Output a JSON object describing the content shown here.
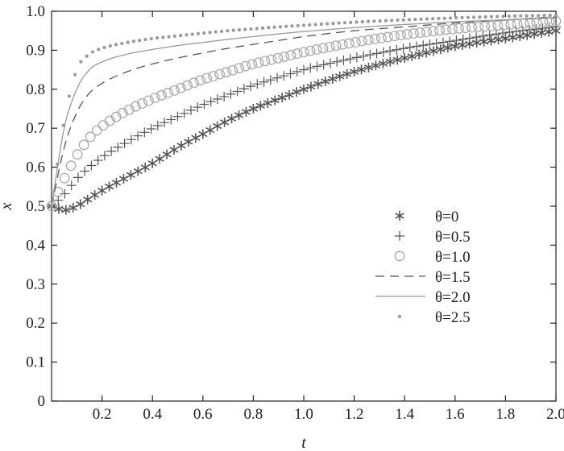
{
  "chart_data": {
    "type": "line",
    "xlabel": "t",
    "ylabel": "x",
    "xlim": [
      0,
      2.0
    ],
    "ylim": [
      0,
      1.0
    ],
    "xticks": [
      "0.2",
      "0.4",
      "0.6",
      "0.8",
      "1.0",
      "1.2",
      "1.4",
      "1.6",
      "1.8",
      "2.0"
    ],
    "yticks": [
      "0",
      "0.1",
      "0.2",
      "0.3",
      "0.4",
      "0.5",
      "0.6",
      "0.7",
      "0.8",
      "0.9",
      "1.0"
    ],
    "grid": false,
    "legend_position": "right-middle",
    "x": [
      0.0,
      0.05,
      0.1,
      0.15,
      0.2,
      0.3,
      0.4,
      0.5,
      0.6,
      0.7,
      0.8,
      0.9,
      1.0,
      1.2,
      1.4,
      1.6,
      1.8,
      2.0
    ],
    "series": [
      {
        "name": "θ=0",
        "marker": "asterisk",
        "color": "#555555",
        "values": [
          0.5,
          0.49,
          0.5,
          0.52,
          0.54,
          0.575,
          0.61,
          0.65,
          0.685,
          0.72,
          0.75,
          0.775,
          0.8,
          0.845,
          0.88,
          0.91,
          0.93,
          0.95
        ]
      },
      {
        "name": "θ=0.5",
        "marker": "plus",
        "color": "#555555",
        "values": [
          0.5,
          0.53,
          0.57,
          0.6,
          0.625,
          0.665,
          0.7,
          0.73,
          0.76,
          0.785,
          0.81,
          0.83,
          0.85,
          0.88,
          0.905,
          0.925,
          0.945,
          0.96
        ]
      },
      {
        "name": "θ=1.0",
        "marker": "circle",
        "color": "#aaaaaa",
        "values": [
          0.5,
          0.57,
          0.63,
          0.675,
          0.705,
          0.745,
          0.775,
          0.8,
          0.825,
          0.845,
          0.865,
          0.88,
          0.895,
          0.92,
          0.94,
          0.955,
          0.965,
          0.975
        ]
      },
      {
        "name": "θ=1.5",
        "marker": "dashed",
        "color": "#555555",
        "values": [
          0.5,
          0.65,
          0.74,
          0.79,
          0.815,
          0.845,
          0.865,
          0.88,
          0.893,
          0.905,
          0.915,
          0.925,
          0.935,
          0.95,
          0.96,
          0.97,
          0.978,
          0.985
        ]
      },
      {
        "name": "θ=2.0",
        "marker": "solid",
        "color": "#999999",
        "values": [
          0.5,
          0.7,
          0.8,
          0.85,
          0.87,
          0.89,
          0.902,
          0.912,
          0.92,
          0.928,
          0.935,
          0.942,
          0.948,
          0.958,
          0.966,
          0.973,
          0.978,
          0.983
        ]
      },
      {
        "name": "θ=2.5",
        "marker": "dot",
        "color": "#999999",
        "values": [
          0.5,
          0.72,
          0.85,
          0.89,
          0.905,
          0.92,
          0.93,
          0.937,
          0.944,
          0.95,
          0.955,
          0.96,
          0.964,
          0.972,
          0.978,
          0.983,
          0.987,
          0.99
        ]
      }
    ]
  }
}
